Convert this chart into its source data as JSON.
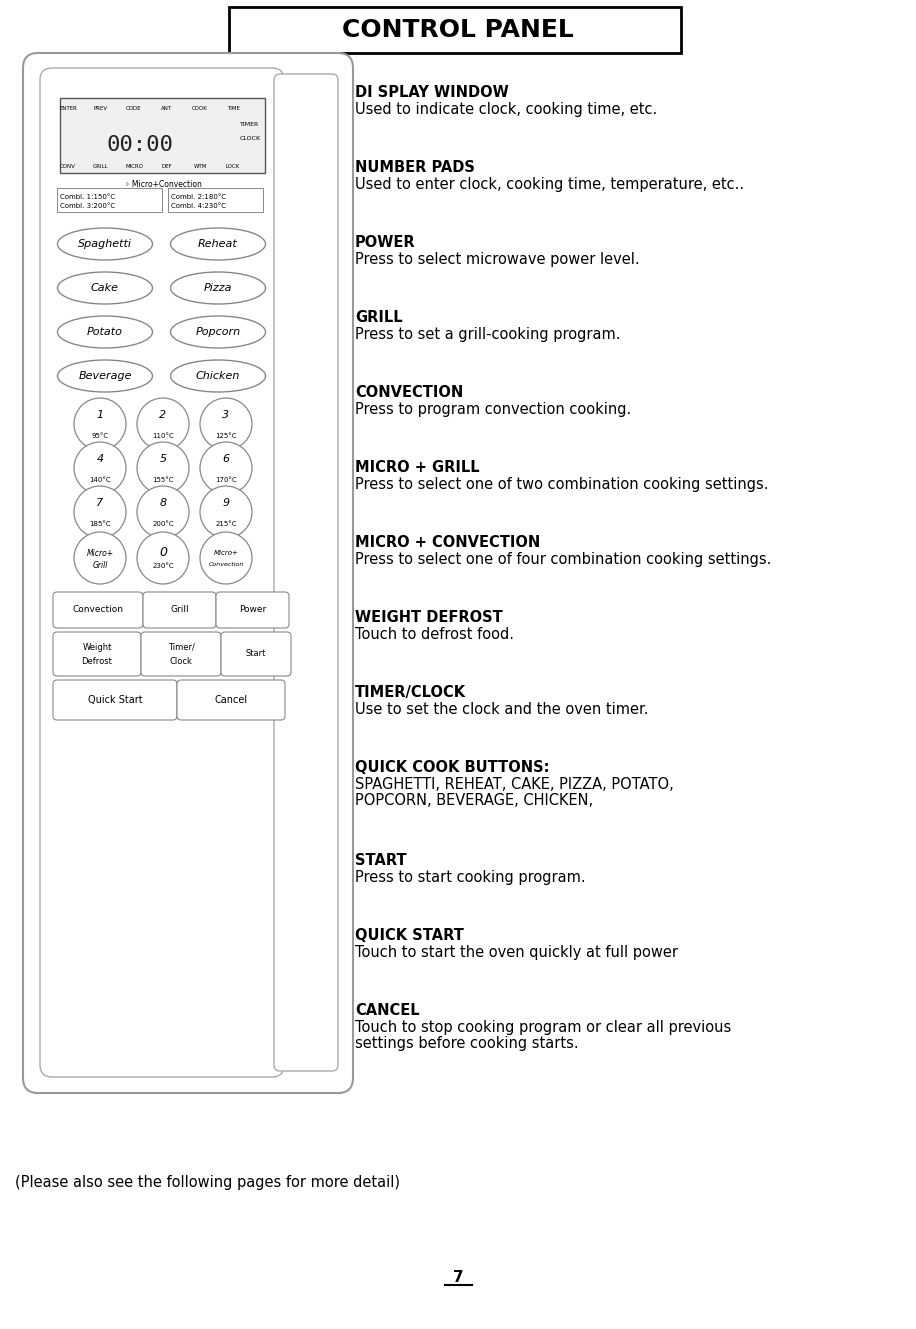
{
  "title": "CONTROL PANEL",
  "bg_color": "#ffffff",
  "panel_items": [
    {
      "label": "DI SPLAY WINDOW",
      "desc": "Used to indicate clock, cooking time, etc.",
      "multiline": false
    },
    {
      "label": "NUMBER PADS",
      "desc": "Used to enter clock, cooking time, temperature, etc..",
      "multiline": false
    },
    {
      "label": "POWER",
      "desc": "Press to select microwave power level.",
      "multiline": false
    },
    {
      "label": "GRILL",
      "desc": "Press to set a grill-cooking program.",
      "multiline": false
    },
    {
      "label": "CONVECTION",
      "desc": "Press to program convection cooking.",
      "multiline": false
    },
    {
      "label": "MICRO + GRILL",
      "desc": "Press to select one of two combination cooking settings.",
      "multiline": false
    },
    {
      "label": "MICRO + CONVECTION",
      "desc": "Press to select one of four combination cooking settings.",
      "multiline": false
    },
    {
      "label": "WEIGHT DEFROST",
      "desc": "Touch to defrost food.",
      "multiline": false
    },
    {
      "label": "TIMER/CLOCK",
      "desc": "Use to set the clock and the oven timer.",
      "multiline": false
    },
    {
      "label": "QUICK COOK BUTTONS:",
      "desc": "SPAGHETTI, REHEAT, CAKE, PIZZA, POTATO,\nPOPCORN, BEVERAGE, CHICKEN,",
      "multiline": true
    },
    {
      "label": "START",
      "desc": "Press to start cooking program.",
      "multiline": false
    },
    {
      "label": "QUICK START",
      "desc": "Touch to start the oven quickly at full power",
      "multiline": false
    },
    {
      "label": "CANCEL",
      "desc": "Touch to stop cooking program or clear all previous\nsettings before cooking starts.",
      "multiline": true
    }
  ],
  "footer": "(Please also see the following pages for more detail)",
  "page_num": "7",
  "label_fontsize": 10.5,
  "desc_fontsize": 10.5,
  "title_fontsize": 18,
  "footer_fontsize": 10.5
}
